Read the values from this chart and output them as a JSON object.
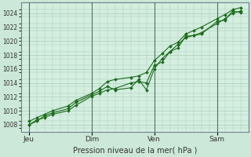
{
  "bg_color": "#cce8d8",
  "plot_bg_color": "#d4eee0",
  "grid_color": "#a8ccb8",
  "line_color": "#1a6b1a",
  "marker_color": "#1a6b1a",
  "vline_color": "#507060",
  "xlabel_text": "Pression niveau de la mer( hPa )",
  "ylim": [
    1007.0,
    1025.5
  ],
  "yticks": [
    1008,
    1010,
    1012,
    1014,
    1016,
    1018,
    1020,
    1022,
    1024
  ],
  "xtick_labels": [
    "Jeu",
    "Dim",
    "Ven",
    "Sam"
  ],
  "xtick_positions": [
    0,
    4,
    8,
    12
  ],
  "series1_x": [
    0,
    0.5,
    1.0,
    1.5,
    2.5,
    3.0,
    4.0,
    4.5,
    5.0,
    5.5,
    6.5,
    7.0,
    7.5,
    8.0,
    8.5,
    9.0,
    9.5,
    10.0,
    10.5,
    11.0,
    12.0,
    12.5,
    13.0,
    13.5
  ],
  "series1_y": [
    1008.0,
    1008.7,
    1009.0,
    1009.5,
    1010.0,
    1010.8,
    1012.1,
    1012.5,
    1013.0,
    1013.2,
    1014.0,
    1014.2,
    1014.0,
    1016.5,
    1017.0,
    1018.5,
    1019.0,
    1020.7,
    1020.8,
    1021.0,
    1022.8,
    1023.0,
    1024.3,
    1024.1
  ],
  "series2_x": [
    0,
    0.5,
    1.0,
    1.5,
    2.5,
    3.0,
    4.0,
    4.5,
    5.0,
    5.5,
    6.5,
    7.0,
    7.5,
    8.0,
    8.5,
    9.0,
    9.5,
    10.0,
    10.5,
    11.0,
    12.0,
    12.5,
    13.0,
    13.5
  ],
  "series2_y": [
    1008.0,
    1008.5,
    1009.3,
    1009.7,
    1010.3,
    1011.2,
    1012.3,
    1012.8,
    1013.5,
    1013.0,
    1013.3,
    1014.5,
    1013.0,
    1016.0,
    1017.5,
    1018.5,
    1019.5,
    1020.5,
    1020.8,
    1021.2,
    1022.5,
    1023.2,
    1024.0,
    1024.3
  ],
  "series3_x": [
    0,
    0.5,
    1.0,
    1.5,
    2.5,
    3.0,
    4.0,
    4.5,
    5.0,
    5.5,
    6.5,
    7.0,
    7.5,
    8.0,
    8.5,
    9.0,
    9.5,
    10.0,
    10.5,
    11.0,
    12.0,
    12.5,
    13.0,
    13.5
  ],
  "series3_y": [
    1008.5,
    1009.0,
    1009.5,
    1010.0,
    1010.7,
    1011.5,
    1012.5,
    1013.2,
    1014.2,
    1014.5,
    1014.8,
    1015.0,
    1015.5,
    1017.2,
    1018.2,
    1019.3,
    1019.8,
    1021.0,
    1021.5,
    1022.0,
    1023.2,
    1023.8,
    1024.5,
    1024.8
  ]
}
